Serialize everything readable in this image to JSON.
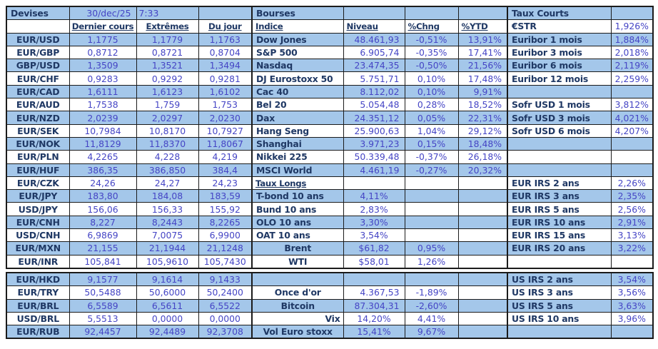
{
  "meta": {
    "date": "30/dec/25",
    "time": "7:33"
  },
  "colors": {
    "row_blue": "#A4C7EA",
    "label_text": "#1F3864",
    "value_text": "#4545C5",
    "border": "#1B1B1B"
  },
  "sections": {
    "devises": {
      "title": "Devises",
      "columns": [
        "Dernier cours",
        "Extrêmes",
        "Du jour"
      ],
      "rows": [
        [
          "EUR/USD",
          "1,1775",
          "1,1779",
          "1,1763"
        ],
        [
          "EUR/GBP",
          "0,8712",
          "0,8721",
          "0,8704"
        ],
        [
          "GBP/USD",
          "1,3509",
          "1,3521",
          "1,3494"
        ],
        [
          "EUR/CHF",
          "0,9283",
          "0,9292",
          "0,9281"
        ],
        [
          "EUR/CAD",
          "1,6111",
          "1,6123",
          "1,6102"
        ],
        [
          "EUR/AUD",
          "1,7538",
          "1,759",
          "1,753"
        ],
        [
          "EUR/NZD",
          "2,0239",
          "2,0297",
          "2,0230"
        ],
        [
          "EUR/SEK",
          "10,7984",
          "10,8170",
          "10,7927"
        ],
        [
          "EUR/NOK",
          "11,8129",
          "11,8370",
          "11,8067"
        ],
        [
          "EUR/PLN",
          "4,2265",
          "4,228",
          "4,219"
        ],
        [
          "EUR/HUF",
          "386,35",
          "386,850",
          "384,4"
        ],
        [
          "EUR/CZK",
          "24,26",
          "24,27",
          "24,23"
        ],
        [
          "EUR/JPY",
          "183,80",
          "184,08",
          "183,59"
        ],
        [
          "USD/JPY",
          "156,06",
          "156,33",
          "155,92"
        ],
        [
          "EUR/CNH",
          "8,227",
          "8,2443",
          "8,2265"
        ],
        [
          "USD/CNH",
          "6,9869",
          "7,0075",
          "6,9900"
        ],
        [
          "EUR/MXN",
          "21,155",
          "21,1944",
          "21,1248"
        ],
        [
          "EUR/INR",
          "105,841",
          "105,9610",
          "105,7430"
        ],
        [
          "EUR/HKD",
          "9,1577",
          "9,1614",
          "9,1433"
        ],
        [
          "EUR/TRY",
          "50,5488",
          "50,6000",
          "50,2400"
        ],
        [
          "EUR/BRL",
          "6,5589",
          "6,5611",
          "6,5522"
        ],
        [
          "USD/BRL",
          "5,5513",
          "0,0000",
          "0,0000"
        ],
        [
          "EUR/RUB",
          "92,4457",
          "92,4489",
          "92,3708"
        ]
      ]
    },
    "bourses": {
      "title": "Bourses",
      "columns": [
        "Indice",
        "Niveau",
        "%Chng",
        "%YTD"
      ],
      "rows": [
        {
          "label": "Dow Jones",
          "level": "48.461,93",
          "chng": "-0,51%",
          "ytd": "13,91%"
        },
        {
          "label": "S&P 500",
          "level": "6.905,74",
          "chng": "-0,35%",
          "ytd": "17,41%"
        },
        {
          "label": "Nasdaq",
          "level": "23.474,35",
          "chng": "-0,50%",
          "ytd": "21,56%"
        },
        {
          "label": "DJ Eurostoxx 50",
          "level": "5.751,71",
          "chng": "0,10%",
          "ytd": "17,48%"
        },
        {
          "label": "Cac 40",
          "level": "8.112,02",
          "chng": "0,10%",
          "ytd": "9,91%"
        },
        {
          "label": "Bel 20",
          "level": "5.054,48",
          "chng": "0,28%",
          "ytd": "18,52%"
        },
        {
          "label": "Dax",
          "level": "24.351,12",
          "chng": "0,05%",
          "ytd": "22,31%"
        },
        {
          "label": "Hang Seng",
          "level": "25.900,63",
          "chng": "1,04%",
          "ytd": "29,12%"
        },
        {
          "label": "Shanghai",
          "level": "3.971,23",
          "chng": "0,15%",
          "ytd": "18,48%"
        },
        {
          "label": "Nikkei 225",
          "level": "50.339,48",
          "chng": "-0,37%",
          "ytd": "26,18%"
        },
        {
          "label": "MSCI World",
          "level": "4.461,19",
          "chng": "-0,27%",
          "ytd": "20,32%"
        },
        {
          "label": "Taux Longs",
          "header": true
        },
        {
          "label": "T-bond 10 ans",
          "level": "4,11%"
        },
        {
          "label": "Bund 10 ans",
          "level": "2,83%"
        },
        {
          "label": "OLO 10 ans",
          "level": "3,30%"
        },
        {
          "label": "OAT 10 ans",
          "level": "3,54%"
        },
        {
          "label": "Brent",
          "level": "$61,82",
          "chng": "0,95%",
          "align": "center"
        },
        {
          "label": "WTI",
          "level": "$58,01",
          "chng": "1,26%",
          "align": "center"
        },
        null,
        {
          "label": "Once d'or",
          "level": "4.367,53",
          "chng": "-1,89%",
          "align": "center"
        },
        {
          "label": "Bitcoin",
          "level": "87.304,31",
          "chng": "-2,60%",
          "align": "center"
        },
        {
          "label": "Vix",
          "level": "14,20%",
          "chng": "4,41%",
          "align": "right"
        },
        {
          "label": "Vol Euro stoxx",
          "level": "15,41%",
          "chng": "9,67%",
          "align": "center"
        }
      ]
    },
    "taux_courts": {
      "title": "Taux Courts",
      "rows": [
        {
          "label": "€STR",
          "value": "1,926%"
        },
        {
          "label": "Euribor 1 mois",
          "value": "1,884%"
        },
        {
          "label": "Euribor 3 mois",
          "value": "2,018%"
        },
        {
          "label": "Euribor 6 mois",
          "value": "2,119%"
        },
        {
          "label": "Euribor 12 mois",
          "value": "2,259%"
        },
        null,
        {
          "label": "Sofr USD 1 mois",
          "value": "3,812%"
        },
        {
          "label": "Sofr USD 3 mois",
          "value": "4,021%"
        },
        {
          "label": "Sofr USD 6 mois",
          "value": "4,207%"
        },
        null,
        null,
        null,
        {
          "label": "EUR IRS 2 ans",
          "value": "2,26%"
        },
        {
          "label": "EUR IRS 3 ans",
          "value": "2,35%"
        },
        {
          "label": "EUR IRS 5 ans",
          "value": "2,56%"
        },
        {
          "label": "EUR IRS 10 ans",
          "value": "2,91%"
        },
        {
          "label": "EUR IRS 15 ans",
          "value": "3,13%"
        },
        {
          "label": "EUR IRS 20 ans",
          "value": "3,22%"
        },
        null,
        {
          "label": "US IRS 2 ans",
          "value": "3,54%"
        },
        {
          "label": "US IRS 3 ans",
          "value": "3,56%"
        },
        {
          "label": "US IRS 5 ans",
          "value": "3,63%"
        },
        {
          "label": "US IRS 10 ans",
          "value": "3,96%"
        },
        null
      ]
    }
  }
}
